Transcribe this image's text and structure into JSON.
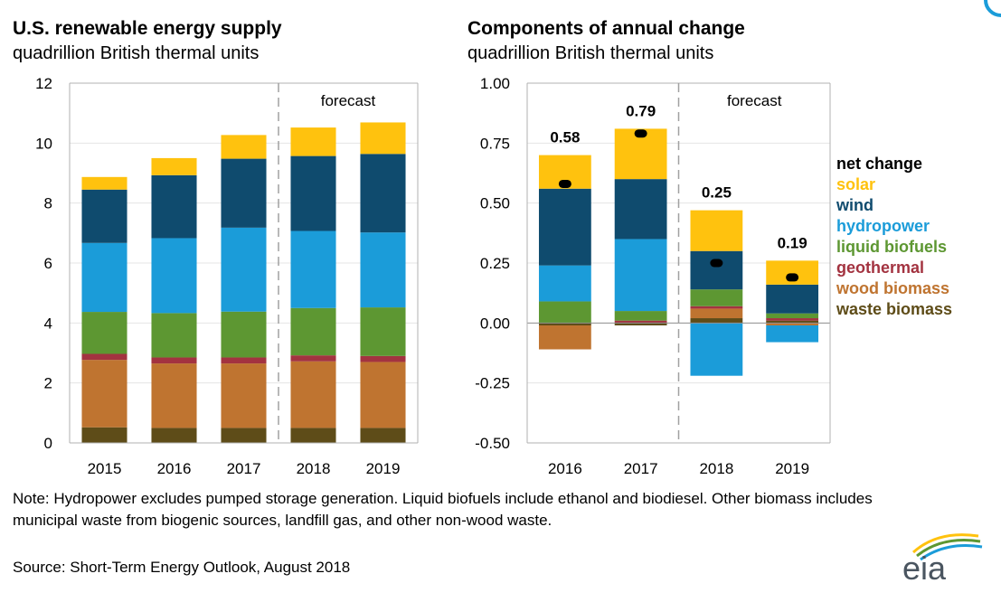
{
  "colors": {
    "solar": "#ffc20e",
    "wind": "#0f4b6e",
    "hydropower": "#1b9cd9",
    "liquid_biofuels": "#5d9732",
    "geothermal": "#a33340",
    "wood_biomass": "#bf7430",
    "waste_biomass": "#5e4c18",
    "net_change": "#000000",
    "axis": "#b0b0b0",
    "forecast_line": "#a0a0a0"
  },
  "left": {
    "title": "U.S. renewable energy supply",
    "subtitle": "quadrillion British thermal units",
    "forecast_label": "forecast"
  },
  "right": {
    "title": "Components of annual change",
    "subtitle": "quadrillion British thermal units",
    "forecast_label": "forecast"
  },
  "legend": [
    {
      "key": "net_change",
      "label": "net change"
    },
    {
      "key": "solar",
      "label": "solar"
    },
    {
      "key": "wind",
      "label": "wind"
    },
    {
      "key": "hydropower",
      "label": "hydropower"
    },
    {
      "key": "liquid_biofuels",
      "label": "liquid biofuels"
    },
    {
      "key": "geothermal",
      "label": "geothermal"
    },
    {
      "key": "wood_biomass",
      "label": "wood biomass"
    },
    {
      "key": "waste_biomass",
      "label": "waste biomass"
    }
  ],
  "note": "Note: Hydropower excludes pumped storage generation.  Liquid biofuels include ethanol and biodiesel.  Other biomass includes municipal waste from biogenic sources, landfill gas, and other non-wood waste.",
  "source": "Source: Short-Term Energy Outlook, August 2018",
  "logo_text": "eia",
  "chart_data": [
    {
      "type": "bar",
      "stacked": true,
      "title": "U.S. renewable energy supply",
      "ylabel": "quadrillion British thermal units",
      "categories": [
        "2015",
        "2016",
        "2017",
        "2018",
        "2019"
      ],
      "ylim": [
        0,
        12
      ],
      "yticks": [
        0,
        2,
        4,
        6,
        8,
        10,
        12
      ],
      "forecast_from": "2018",
      "series": [
        {
          "name": "waste biomass",
          "key": "waste_biomass",
          "values": [
            0.52,
            0.5,
            0.5,
            0.5,
            0.5
          ]
        },
        {
          "name": "wood biomass",
          "key": "wood_biomass",
          "values": [
            2.25,
            2.15,
            2.15,
            2.22,
            2.2
          ]
        },
        {
          "name": "geothermal",
          "key": "geothermal",
          "values": [
            0.2,
            0.2,
            0.2,
            0.2,
            0.2
          ]
        },
        {
          "name": "liquid biofuels",
          "key": "liquid_biofuels",
          "values": [
            1.4,
            1.48,
            1.53,
            1.58,
            1.62
          ]
        },
        {
          "name": "hydropower",
          "key": "hydropower",
          "values": [
            2.3,
            2.5,
            2.8,
            2.57,
            2.5
          ]
        },
        {
          "name": "wind",
          "key": "wind",
          "values": [
            1.78,
            2.1,
            2.3,
            2.5,
            2.62
          ]
        },
        {
          "name": "solar",
          "key": "solar",
          "values": [
            0.42,
            0.57,
            0.79,
            0.95,
            1.05
          ]
        }
      ]
    },
    {
      "type": "bar",
      "stacked": true,
      "title": "Components of annual change",
      "ylabel": "quadrillion British thermal units",
      "categories": [
        "2016",
        "2017",
        "2018",
        "2019"
      ],
      "ylim": [
        -0.5,
        1.0
      ],
      "yticks": [
        -0.5,
        -0.25,
        0.0,
        0.25,
        0.5,
        0.75,
        1.0
      ],
      "ytick_labels": [
        "-0.50",
        "-0.25",
        "0.00",
        "0.25",
        "0.50",
        "0.75",
        "1.00"
      ],
      "forecast_from": "2018",
      "series": [
        {
          "name": "waste biomass",
          "key": "waste_biomass",
          "values": [
            -0.01,
            -0.01,
            0.02,
            0.01
          ]
        },
        {
          "name": "wood biomass",
          "key": "wood_biomass",
          "values": [
            -0.1,
            0.0,
            0.04,
            -0.01
          ]
        },
        {
          "name": "geothermal",
          "key": "geothermal",
          "values": [
            0.0,
            0.01,
            0.01,
            0.01
          ]
        },
        {
          "name": "liquid biofuels",
          "key": "liquid_biofuels",
          "values": [
            0.09,
            0.04,
            0.07,
            0.02
          ]
        },
        {
          "name": "hydropower",
          "key": "hydropower",
          "values": [
            0.15,
            0.3,
            -0.22,
            -0.07
          ]
        },
        {
          "name": "wind",
          "key": "wind",
          "values": [
            0.32,
            0.25,
            0.16,
            0.12
          ]
        },
        {
          "name": "solar",
          "key": "solar",
          "values": [
            0.14,
            0.21,
            0.17,
            0.1
          ]
        }
      ],
      "net_change": [
        0.58,
        0.79,
        0.25,
        0.19
      ],
      "net_change_labels": [
        "0.58",
        "0.79",
        "0.25",
        "0.19"
      ]
    }
  ]
}
